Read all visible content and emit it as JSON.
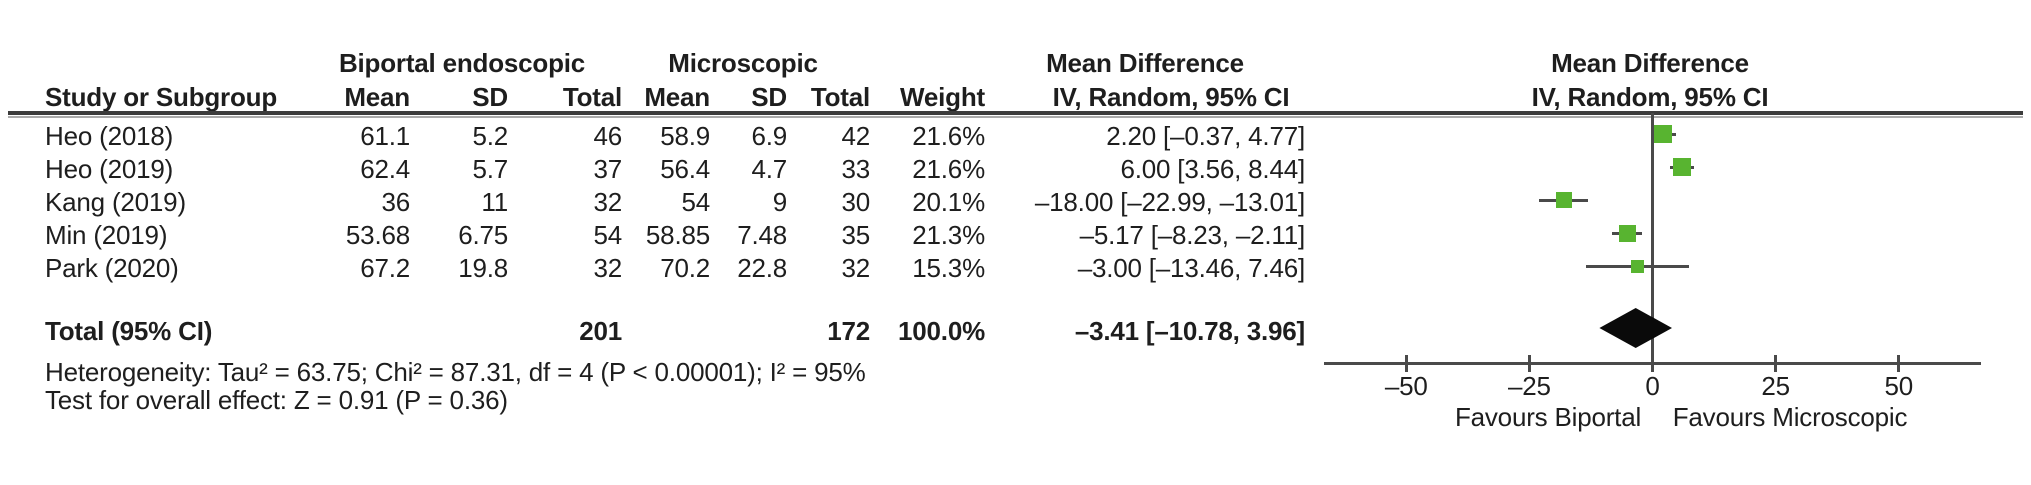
{
  "figure": {
    "group1_title": "Biportal endoscopic",
    "group2_title": "Microscopic",
    "md_title_table": "Mean Difference",
    "md_title_plot": "Mean Difference",
    "method_table": "IV, Random, 95% CI",
    "method_plot": "IV, Random, 95% CI",
    "headers": {
      "study": "Study or Subgroup",
      "mean1": "Mean",
      "sd1": "SD",
      "total1": "Total",
      "mean2": "Mean",
      "sd2": "SD",
      "total2": "Total",
      "weight": "Weight"
    },
    "rows": [
      {
        "study": "Heo (2018)",
        "mean1": "61.1",
        "sd1": "5.2",
        "total1": "46",
        "mean2": "58.9",
        "sd2": "6.9",
        "total2": "42",
        "weight": "21.6%",
        "ci": "2.20 [–0.37, 4.77]"
      },
      {
        "study": "Heo (2019)",
        "mean1": "62.4",
        "sd1": "5.7",
        "total1": "37",
        "mean2": "56.4",
        "sd2": "4.7",
        "total2": "33",
        "weight": "21.6%",
        "ci": "6.00 [3.56, 8.44]"
      },
      {
        "study": "Kang (2019)",
        "mean1": "36",
        "sd1": "11",
        "total1": "32",
        "mean2": "54",
        "sd2": "9",
        "total2": "30",
        "weight": "20.1%",
        "ci": "–18.00 [–22.99, –13.01]"
      },
      {
        "study": "Min (2019)",
        "mean1": "53.68",
        "sd1": "6.75",
        "total1": "54",
        "mean2": "58.85",
        "sd2": "7.48",
        "total2": "35",
        "weight": "21.3%",
        "ci": "–5.17 [–8.23, –2.11]"
      },
      {
        "study": "Park (2020)",
        "mean1": "67.2",
        "sd1": "19.8",
        "total1": "32",
        "mean2": "70.2",
        "sd2": "22.8",
        "total2": "32",
        "weight": "15.3%",
        "ci": "–3.00 [–13.46, 7.46]"
      }
    ],
    "total_row": {
      "label": "Total (95% CI)",
      "total1": "201",
      "total2": "172",
      "weight": "100.0%",
      "ci": "–3.41 [–10.78, 3.96]"
    },
    "heterogeneity": "Heterogeneity: Tau² = 63.75; Chi² = 87.31, df = 4 (P < 0.00001); I² = 95%",
    "overall_effect": "Test for overall effect: Z = 0.91 (P = 0.36)"
  },
  "chart_data": {
    "type": "forest",
    "effect_label": "Mean Difference",
    "method": "IV, Random, 95% CI",
    "studies": [
      {
        "name": "Heo (2018)",
        "biportal": {
          "mean": 61.1,
          "sd": 5.2,
          "total": 46
        },
        "microscopic": {
          "mean": 58.9,
          "sd": 6.9,
          "total": 42
        },
        "weight_pct": 21.6,
        "md": 2.2,
        "ci": [
          -0.37,
          4.77
        ]
      },
      {
        "name": "Heo (2019)",
        "biportal": {
          "mean": 62.4,
          "sd": 5.7,
          "total": 37
        },
        "microscopic": {
          "mean": 56.4,
          "sd": 4.7,
          "total": 33
        },
        "weight_pct": 21.6,
        "md": 6.0,
        "ci": [
          3.56,
          8.44
        ]
      },
      {
        "name": "Kang (2019)",
        "biportal": {
          "mean": 36,
          "sd": 11,
          "total": 32
        },
        "microscopic": {
          "mean": 54,
          "sd": 9,
          "total": 30
        },
        "weight_pct": 20.1,
        "md": -18.0,
        "ci": [
          -22.99,
          -13.01
        ]
      },
      {
        "name": "Min (2019)",
        "biportal": {
          "mean": 53.68,
          "sd": 6.75,
          "total": 54
        },
        "microscopic": {
          "mean": 58.85,
          "sd": 7.48,
          "total": 35
        },
        "weight_pct": 21.3,
        "md": -5.17,
        "ci": [
          -8.23,
          -2.11
        ]
      },
      {
        "name": "Park (2020)",
        "biportal": {
          "mean": 67.2,
          "sd": 19.8,
          "total": 32
        },
        "microscopic": {
          "mean": 70.2,
          "sd": 22.8,
          "total": 32
        },
        "weight_pct": 15.3,
        "md": -3.0,
        "ci": [
          -13.46,
          7.46
        ]
      }
    ],
    "total": {
      "label": "Total (95% CI)",
      "biportal_total": 201,
      "microscopic_total": 172,
      "weight_pct": 100.0,
      "md": -3.41,
      "ci": [
        -10.78,
        3.96
      ]
    },
    "heterogeneity": {
      "tau2": 63.75,
      "chi2": 87.31,
      "df": 4,
      "p": "< 0.00001",
      "i2_pct": 95
    },
    "overall_effect": {
      "z": 0.91,
      "p": 0.36
    },
    "xaxis": {
      "ticks": [
        -50,
        -25,
        0,
        25,
        50
      ],
      "xlim": [
        -66.8,
        66.8
      ],
      "left_label": "Favours Biportal",
      "right_label": "Favours Microscopic"
    }
  },
  "colors": {
    "marker_green": "#58b430",
    "diamond": "#0a0a0a",
    "line": "#4a4a4a",
    "text": "#1e1e1e"
  }
}
